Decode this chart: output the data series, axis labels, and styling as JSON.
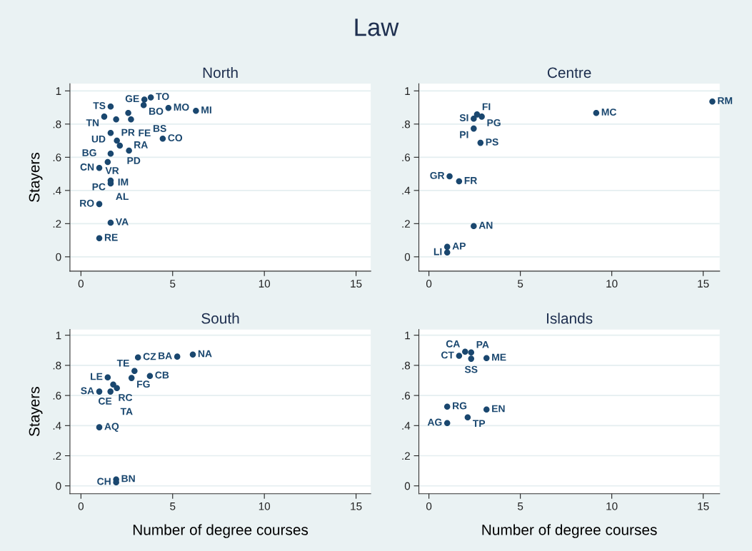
{
  "chart_data": [
    {
      "type": "scatter",
      "title": "Law",
      "subtitle": "North",
      "ylabel": "Stayers",
      "xlim": [
        -0.6,
        15.8
      ],
      "ylim": [
        -0.086,
        1.043
      ],
      "xticks": [
        0,
        5,
        10,
        15
      ],
      "yticks": [
        0,
        {
          "value": 0.2,
          "label": ".2"
        },
        {
          "value": 0.4,
          "label": ".4"
        },
        {
          "value": 0.6,
          "label": ".6"
        },
        {
          "value": 0.8,
          "label": ".8"
        },
        1
      ],
      "grid": "y",
      "marker": "circle",
      "series": [
        {
          "color": "#1a476f",
          "x": [
            3.46,
            3.81,
            3.42,
            1.62,
            4.77,
            6.27,
            1.27,
            2.58,
            1.92,
            2.73,
            1.62,
            1.96,
            2.12,
            2.62,
            4.46,
            1.62,
            1.46,
            1,
            1.62,
            1.62,
            1,
            1.62,
            1
          ],
          "values": [
            0.948,
            0.961,
            0.914,
            0.906,
            0.897,
            0.88,
            0.845,
            0.867,
            0.828,
            0.828,
            0.747,
            0.7,
            0.67,
            0.64,
            0.712,
            0.622,
            0.571,
            0.536,
            0.459,
            0.442,
            0.318,
            0.206,
            0.112
          ]
        }
      ],
      "annotations": [
        {
          "text": "GE",
          "x": 3.46,
          "y": 0.948
        },
        {
          "text": "TO",
          "x": 3.81,
          "y": 0.961
        },
        {
          "text": "BO",
          "x": 3.42,
          "y": 0.914
        },
        {
          "text": "TS",
          "x": 1.62,
          "y": 0.906
        },
        {
          "text": "MO",
          "x": 4.77,
          "y": 0.897
        },
        {
          "text": "MI",
          "x": 6.27,
          "y": 0.88
        },
        {
          "text": "TN",
          "x": 1.27,
          "y": 0.845
        },
        {
          "text": "FE",
          "x": 2.58,
          "y": 0.867
        },
        {
          "text": "PR",
          "x": 1.92,
          "y": 0.828
        },
        {
          "text": "BS",
          "x": 2.73,
          "y": 0.828
        },
        {
          "text": "UD",
          "x": 1.62,
          "y": 0.747
        },
        {
          "text": "PD",
          "x": 1.96,
          "y": 0.7
        },
        {
          "text": "RA",
          "x": 2.12,
          "y": 0.67
        },
        {
          "text": "VR",
          "x": 2.62,
          "y": 0.64
        },
        {
          "text": "CO",
          "x": 4.46,
          "y": 0.712
        },
        {
          "text": "BG",
          "x": 1.62,
          "y": 0.622
        },
        {
          "text": "IM",
          "x": 1.46,
          "y": 0.571
        },
        {
          "text": "CN",
          "x": 1,
          "y": 0.536
        },
        {
          "text": "PC",
          "x": 1.62,
          "y": 0.459
        },
        {
          "text": "AL",
          "x": 1.62,
          "y": 0.442
        },
        {
          "text": "RO",
          "x": 1,
          "y": 0.318
        },
        {
          "text": "VA",
          "x": 1.62,
          "y": 0.206
        },
        {
          "text": "RE",
          "x": 1,
          "y": 0.112
        }
      ]
    },
    {
      "type": "scatter",
      "subtitle": "Centre",
      "xlim": [
        -0.55,
        15.9
      ],
      "ylim": [
        -0.086,
        1.043
      ],
      "xticks": [
        0,
        5,
        10,
        15
      ],
      "yticks": [
        0,
        {
          "value": 0.2,
          "label": ".2"
        },
        {
          "value": 0.4,
          "label": ".4"
        },
        {
          "value": 0.6,
          "label": ".6"
        },
        {
          "value": 0.8,
          "label": ".8"
        },
        1
      ],
      "grid": "y",
      "marker": "circle",
      "series": [
        {
          "color": "#1a476f",
          "x": [
            15.5,
            9.15,
            2.63,
            2.89,
            2.45,
            2.45,
            2.82,
            1.13,
            1.65,
            2.45,
            1,
            1
          ],
          "values": [
            0.936,
            0.867,
            0.858,
            0.845,
            0.833,
            0.773,
            0.687,
            0.485,
            0.455,
            0.185,
            0.06,
            0.026
          ]
        }
      ],
      "annotations": [
        {
          "text": "RM",
          "x": 15.5,
          "y": 0.936
        },
        {
          "text": "MC",
          "x": 9.15,
          "y": 0.867
        },
        {
          "text": "FI",
          "x": 2.63,
          "y": 0.858
        },
        {
          "text": "PG",
          "x": 2.89,
          "y": 0.845
        },
        {
          "text": "SI",
          "x": 2.45,
          "y": 0.833
        },
        {
          "text": "PI",
          "x": 2.45,
          "y": 0.773
        },
        {
          "text": "PS",
          "x": 2.82,
          "y": 0.687
        },
        {
          "text": "GR",
          "x": 1.13,
          "y": 0.485
        },
        {
          "text": "FR",
          "x": 1.65,
          "y": 0.455
        },
        {
          "text": "AN",
          "x": 2.45,
          "y": 0.185
        },
        {
          "text": "AP",
          "x": 1,
          "y": 0.06
        },
        {
          "text": "LI",
          "x": 1,
          "y": 0.026
        }
      ]
    },
    {
      "type": "scatter",
      "subtitle": "South",
      "ylabel": "Stayers",
      "xlabel": "Number of degree courses",
      "xlim": [
        -0.6,
        15.8
      ],
      "ylim": [
        -0.052,
        1.038
      ],
      "xticks": [
        0,
        5,
        10,
        15
      ],
      "yticks": [
        0,
        {
          "value": 0.2,
          "label": ".2"
        },
        {
          "value": 0.4,
          "label": ".4"
        },
        {
          "value": 0.6,
          "label": ".6"
        },
        {
          "value": 0.8,
          "label": ".8"
        },
        1
      ],
      "grid": "y",
      "marker": "circle",
      "series": [
        {
          "color": "#1a476f",
          "x": [
            3.11,
            5.25,
            6.1,
            2.92,
            3.76,
            1.46,
            2.76,
            1.76,
            1.96,
            1.61,
            1,
            1,
            1.92,
            1.92
          ],
          "values": [
            0.853,
            0.858,
            0.872,
            0.763,
            0.73,
            0.72,
            0.716,
            0.673,
            0.649,
            0.626,
            0.626,
            0.389,
            0.043,
            0.024
          ]
        }
      ],
      "annotations": [
        {
          "text": "CZ",
          "x": 3.11,
          "y": 0.853
        },
        {
          "text": "BA",
          "x": 5.25,
          "y": 0.858
        },
        {
          "text": "NA",
          "x": 6.1,
          "y": 0.872
        },
        {
          "text": "TE",
          "x": 2.92,
          "y": 0.763
        },
        {
          "text": "CB",
          "x": 3.76,
          "y": 0.73
        },
        {
          "text": "LE",
          "x": 1.46,
          "y": 0.72
        },
        {
          "text": "FG",
          "x": 2.76,
          "y": 0.716
        },
        {
          "text": "RC",
          "x": 1.76,
          "y": 0.673
        },
        {
          "text": "CE",
          "x": 1.96,
          "y": 0.649
        },
        {
          "text": "TA",
          "x": 1.61,
          "y": 0.626
        },
        {
          "text": "SA",
          "x": 1,
          "y": 0.626
        },
        {
          "text": "AQ",
          "x": 1,
          "y": 0.389
        },
        {
          "text": "BN",
          "x": 1.92,
          "y": 0.043
        },
        {
          "text": "CH",
          "x": 1.92,
          "y": 0.024
        }
      ]
    },
    {
      "type": "scatter",
      "subtitle": "Islands",
      "xlabel": "Number of degree courses",
      "xlim": [
        -0.55,
        15.9
      ],
      "ylim": [
        -0.052,
        1.038
      ],
      "xticks": [
        0,
        5,
        10,
        15
      ],
      "yticks": [
        0,
        {
          "value": 0.2,
          "label": ".2"
        },
        {
          "value": 0.4,
          "label": ".4"
        },
        {
          "value": 0.6,
          "label": ".6"
        },
        {
          "value": 0.8,
          "label": ".8"
        },
        1
      ],
      "grid": "y",
      "marker": "circle",
      "series": [
        {
          "color": "#1a476f",
          "x": [
            1.98,
            2.31,
            1.65,
            2.31,
            3.15,
            1,
            3.15,
            2.12,
            1
          ],
          "values": [
            0.891,
            0.886,
            0.863,
            0.844,
            0.848,
            0.526,
            0.507,
            0.455,
            0.417
          ]
        }
      ],
      "annotations": [
        {
          "text": "CA",
          "x": 1.98,
          "y": 0.891
        },
        {
          "text": "PA",
          "x": 2.31,
          "y": 0.886
        },
        {
          "text": "CT",
          "x": 1.65,
          "y": 0.863
        },
        {
          "text": "SS",
          "x": 2.31,
          "y": 0.844
        },
        {
          "text": "ME",
          "x": 3.15,
          "y": 0.848
        },
        {
          "text": "RG",
          "x": 1,
          "y": 0.526
        },
        {
          "text": "EN",
          "x": 3.15,
          "y": 0.507
        },
        {
          "text": "TP",
          "x": 2.12,
          "y": 0.455
        },
        {
          "text": "AG",
          "x": 1,
          "y": 0.417
        }
      ]
    }
  ]
}
